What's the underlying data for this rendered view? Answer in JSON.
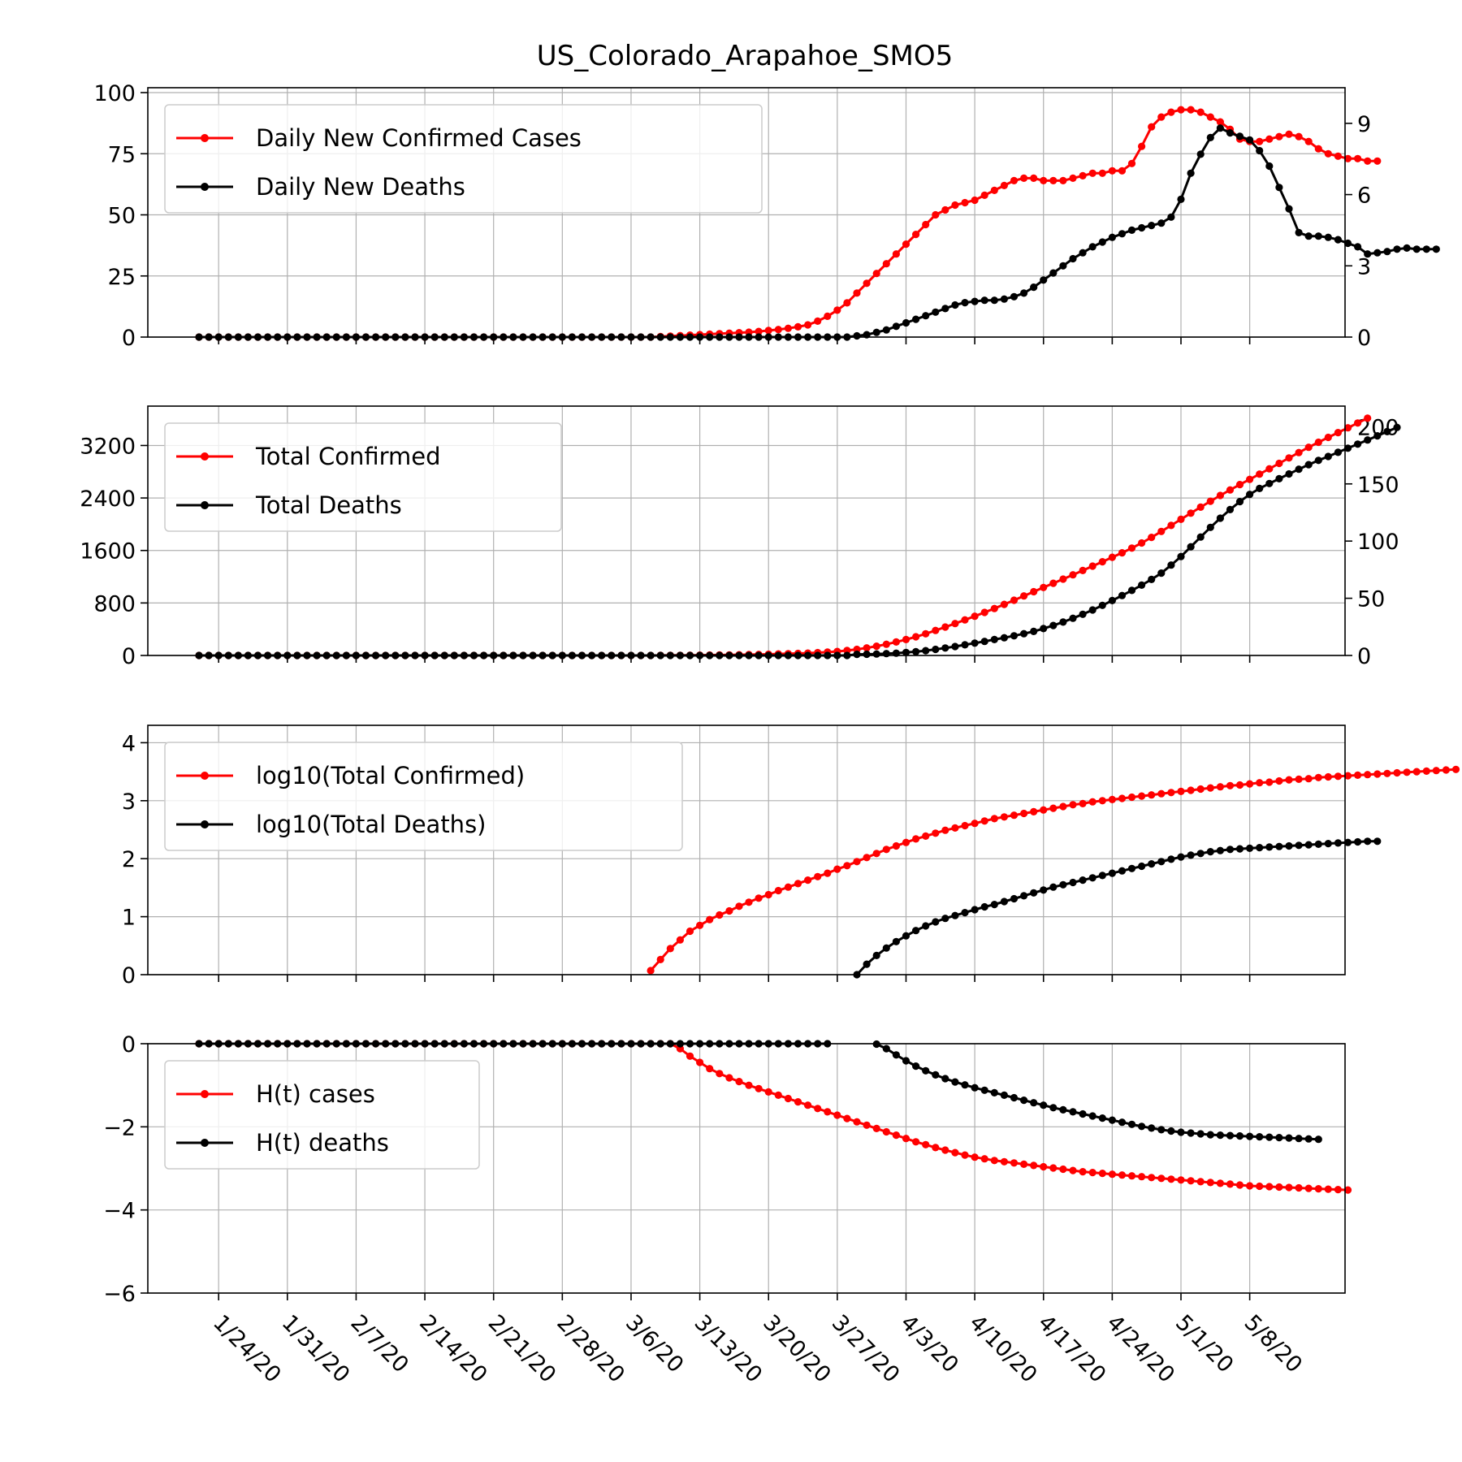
{
  "chart_data": {
    "type": "line",
    "title": "US_Colorado_Arapahoe_SMO5",
    "x_ticks": [
      "1/24/20",
      "1/31/20",
      "2/7/20",
      "2/14/20",
      "2/21/20",
      "2/28/20",
      "3/6/20",
      "3/13/20",
      "3/20/20",
      "3/27/20",
      "4/3/20",
      "4/10/20",
      "4/17/20",
      "4/24/20",
      "5/1/20",
      "5/8/20"
    ],
    "x_start": "1/22/20",
    "colors": {
      "cases": "#ff0000",
      "deaths": "#000000"
    },
    "grid": true,
    "legend_position": "upper-left",
    "panels": [
      {
        "id": "daily",
        "yticks_left": [
          "0",
          "25",
          "50",
          "75",
          "100"
        ],
        "ylim_left": [
          0,
          102
        ],
        "yticks_right": [
          "0",
          "3",
          "6",
          "9"
        ],
        "ylim_right": [
          0,
          10.5
        ],
        "series": [
          {
            "name": "Daily New Confirmed Cases",
            "axis": "left",
            "color": "#ff0000",
            "y": [
              0,
              0,
              0,
              0,
              0,
              0,
              0,
              0,
              0,
              0,
              0,
              0,
              0,
              0,
              0,
              0,
              0,
              0,
              0,
              0,
              0,
              0,
              0,
              0,
              0,
              0,
              0,
              0,
              0,
              0,
              0,
              0,
              0,
              0,
              0,
              0,
              0,
              0,
              0,
              0,
              0,
              0,
              0,
              0,
              0,
              0,
              0,
              0.2,
              0.4,
              0.6,
              0.8,
              1.0,
              1.2,
              1.4,
              1.6,
              1.8,
              2.0,
              2.3,
              2.7,
              3.1,
              3.6,
              4.2,
              5.0,
              6.5,
              8.5,
              11,
              14,
              18,
              22,
              26,
              30,
              34,
              38,
              42,
              46,
              50,
              52,
              54,
              55,
              56,
              58,
              60,
              62,
              64,
              65,
              65,
              64,
              64,
              64,
              65,
              66,
              67,
              67,
              68,
              68,
              71,
              78,
              86,
              90,
              92,
              93,
              93,
              92,
              90,
              88,
              85,
              81,
              80,
              80,
              81,
              82,
              83,
              82,
              80,
              77,
              75,
              74,
              73,
              73,
              72,
              72
            ]
          },
          {
            "name": "Daily New Deaths",
            "axis": "right",
            "color": "#000000",
            "y": [
              0,
              0,
              0,
              0,
              0,
              0,
              0,
              0,
              0,
              0,
              0,
              0,
              0,
              0,
              0,
              0,
              0,
              0,
              0,
              0,
              0,
              0,
              0,
              0,
              0,
              0,
              0,
              0,
              0,
              0,
              0,
              0,
              0,
              0,
              0,
              0,
              0,
              0,
              0,
              0,
              0,
              0,
              0,
              0,
              0,
              0,
              0,
              0,
              0,
              0,
              0,
              0,
              0,
              0,
              0,
              0,
              0,
              0,
              0,
              0,
              0,
              0,
              0,
              0,
              0,
              0,
              0,
              0.05,
              0.1,
              0.2,
              0.3,
              0.45,
              0.6,
              0.75,
              0.9,
              1.05,
              1.2,
              1.35,
              1.45,
              1.5,
              1.55,
              1.55,
              1.6,
              1.7,
              1.85,
              2.1,
              2.4,
              2.7,
              3.0,
              3.3,
              3.55,
              3.8,
              4.0,
              4.2,
              4.35,
              4.5,
              4.6,
              4.7,
              4.8,
              5.05,
              5.8,
              6.9,
              7.7,
              8.4,
              8.8,
              8.6,
              8.45,
              8.3,
              7.85,
              7.2,
              6.3,
              5.4,
              4.4,
              4.25,
              4.25,
              4.2,
              4.1,
              3.95,
              3.8,
              3.5,
              3.55,
              3.6,
              3.7,
              3.75,
              3.7,
              3.7,
              3.7
            ]
          }
        ]
      },
      {
        "id": "total",
        "yticks_left": [
          "0",
          "800",
          "1600",
          "2400",
          "3200"
        ],
        "ylim_left": [
          0,
          3800
        ],
        "yticks_right": [
          "0",
          "50",
          "100",
          "150",
          "200"
        ],
        "ylim_right": [
          0,
          218
        ],
        "series": [
          {
            "name": "Total Confirmed",
            "axis": "left",
            "color": "#ff0000",
            "y": [
              0,
              0,
              0,
              0,
              0,
              0,
              0,
              0,
              0,
              0,
              0,
              0,
              0,
              0,
              0,
              0,
              0,
              0,
              0,
              0,
              0,
              0,
              0,
              0,
              0,
              0,
              0,
              0,
              0,
              0,
              0,
              0,
              0,
              0,
              0,
              0,
              0,
              0,
              0,
              0,
              0,
              0,
              0,
              0,
              0,
              0,
              0,
              1,
              2,
              3,
              4,
              5,
              6,
              7,
              9,
              11,
              13,
              16,
              19,
              23,
              27,
              31,
              36,
              43,
              51,
              61,
              75,
              93,
              115,
              141,
              171,
              205,
              243,
              285,
              331,
              381,
              433,
              487,
              542,
              598,
              656,
              716,
              778,
              842,
              907,
              972,
              1036,
              1100,
              1164,
              1229,
              1295,
              1362,
              1429,
              1497,
              1565,
              1636,
              1714,
              1800,
              1890,
              1982,
              2075,
              2168,
              2260,
              2350,
              2438,
              2523,
              2604,
              2684,
              2764,
              2845,
              2927,
              3010,
              3092,
              3172,
              3249,
              3324,
              3397,
              3470,
              3543,
              3615
            ]
          },
          {
            "name": "Total Deaths",
            "axis": "right",
            "color": "#000000",
            "y": [
              0,
              0,
              0,
              0,
              0,
              0,
              0,
              0,
              0,
              0,
              0,
              0,
              0,
              0,
              0,
              0,
              0,
              0,
              0,
              0,
              0,
              0,
              0,
              0,
              0,
              0,
              0,
              0,
              0,
              0,
              0,
              0,
              0,
              0,
              0,
              0,
              0,
              0,
              0,
              0,
              0,
              0,
              0,
              0,
              0,
              0,
              0,
              0,
              0,
              0,
              0,
              0,
              0,
              0,
              0,
              0,
              0,
              0,
              0,
              0,
              0,
              0,
              0,
              0,
              0,
              0,
              0,
              1,
              1.1,
              1.3,
              1.6,
              2,
              2.6,
              3.3,
              4.2,
              5.3,
              6.5,
              7.8,
              9.3,
              10.8,
              12.3,
              13.9,
              15.5,
              17.2,
              19,
              21,
              23.5,
              26.2,
              29.2,
              32.5,
              36,
              39.8,
              43.8,
              48,
              52.4,
              56.9,
              61.5,
              66.5,
              72,
              79,
              86.5,
              95,
              103.5,
              112,
              120,
              127.5,
              134.5,
              140.8,
              146,
              150.3,
              154.5,
              158.7,
              162.8,
              166.8,
              170.6,
              174,
              177.6,
              181.2,
              184.8,
              188.4,
              192,
              195.7,
              199.4
            ]
          }
        ]
      },
      {
        "id": "log",
        "yticks_left": [
          "0",
          "1",
          "2",
          "3",
          "4"
        ],
        "ylim_left": [
          0,
          4.3
        ],
        "series": [
          {
            "name": "log10(Total Confirmed)",
            "axis": "left",
            "color": "#ff0000",
            "start_index": 46,
            "y": [
              0.07,
              0.26,
              0.45,
              0.6,
              0.75,
              0.85,
              0.95,
              1.03,
              1.1,
              1.18,
              1.25,
              1.32,
              1.38,
              1.45,
              1.51,
              1.57,
              1.63,
              1.69,
              1.75,
              1.82,
              1.88,
              1.95,
              2.02,
              2.09,
              2.16,
              2.22,
              2.28,
              2.34,
              2.39,
              2.44,
              2.49,
              2.53,
              2.57,
              2.61,
              2.65,
              2.69,
              2.72,
              2.75,
              2.78,
              2.81,
              2.84,
              2.87,
              2.9,
              2.93,
              2.95,
              2.98,
              3.0,
              3.02,
              3.04,
              3.06,
              3.08,
              3.1,
              3.12,
              3.14,
              3.16,
              3.18,
              3.2,
              3.22,
              3.24,
              3.26,
              3.27,
              3.29,
              3.31,
              3.32,
              3.34,
              3.36,
              3.37,
              3.38,
              3.4,
              3.41,
              3.42,
              3.43,
              3.44,
              3.45,
              3.46,
              3.47,
              3.48,
              3.49,
              3.5,
              3.51,
              3.52,
              3.53,
              3.54
            ]
          },
          {
            "name": "log10(Total Deaths)",
            "axis": "left",
            "color": "#000000",
            "start_index": 67,
            "y": [
              0.0,
              0.18,
              0.33,
              0.46,
              0.57,
              0.67,
              0.76,
              0.84,
              0.91,
              0.97,
              1.02,
              1.07,
              1.12,
              1.17,
              1.21,
              1.26,
              1.31,
              1.36,
              1.41,
              1.46,
              1.51,
              1.55,
              1.59,
              1.63,
              1.67,
              1.71,
              1.75,
              1.79,
              1.83,
              1.87,
              1.91,
              1.95,
              1.99,
              2.03,
              2.06,
              2.09,
              2.12,
              2.14,
              2.16,
              2.17,
              2.18,
              2.19,
              2.2,
              2.21,
              2.22,
              2.23,
              2.24,
              2.25,
              2.26,
              2.27,
              2.28,
              2.29,
              2.3,
              2.3
            ]
          }
        ]
      },
      {
        "id": "h",
        "yticks_left": [
          "0",
          "−2",
          "−4",
          "−6"
        ],
        "ylim_left": [
          -6,
          0
        ],
        "series": [
          {
            "name": "H(t) cases",
            "axis": "left",
            "color": "#ff0000",
            "y": [
              0,
              0,
              0,
              0,
              0,
              0,
              0,
              0,
              0,
              0,
              0,
              0,
              0,
              0,
              0,
              0,
              0,
              0,
              0,
              0,
              0,
              0,
              0,
              0,
              0,
              0,
              0,
              0,
              0,
              0,
              0,
              0,
              0,
              0,
              0,
              0,
              0,
              0,
              0,
              0,
              0,
              0,
              0,
              0,
              0,
              0,
              0,
              0,
              0,
              -0.12,
              -0.3,
              -0.45,
              -0.6,
              -0.72,
              -0.82,
              -0.91,
              -1.0,
              -1.08,
              -1.16,
              -1.24,
              -1.32,
              -1.4,
              -1.48,
              -1.56,
              -1.64,
              -1.72,
              -1.8,
              -1.88,
              -1.96,
              -2.04,
              -2.12,
              -2.2,
              -2.28,
              -2.36,
              -2.43,
              -2.5,
              -2.56,
              -2.62,
              -2.68,
              -2.73,
              -2.77,
              -2.81,
              -2.84,
              -2.87,
              -2.9,
              -2.93,
              -2.96,
              -2.99,
              -3.02,
              -3.05,
              -3.08,
              -3.1,
              -3.12,
              -3.14,
              -3.16,
              -3.18,
              -3.2,
              -3.22,
              -3.24,
              -3.26,
              -3.28,
              -3.3,
              -3.32,
              -3.34,
              -3.36,
              -3.38,
              -3.4,
              -3.42,
              -3.43,
              -3.44,
              -3.45,
              -3.46,
              -3.47,
              -3.48,
              -3.49,
              -3.5,
              -3.51,
              -3.52
            ]
          },
          {
            "name": "H(t) deaths",
            "axis": "left",
            "color": "#000000",
            "y": [
              0,
              0,
              0,
              0,
              0,
              0,
              0,
              0,
              0,
              0,
              0,
              0,
              0,
              0,
              0,
              0,
              0,
              0,
              0,
              0,
              0,
              0,
              0,
              0,
              0,
              0,
              0,
              0,
              0,
              0,
              0,
              0,
              0,
              0,
              0,
              0,
              0,
              0,
              0,
              0,
              0,
              0,
              0,
              0,
              0,
              0,
              0,
              0,
              0,
              0,
              0,
              0,
              0,
              0,
              0,
              0,
              0,
              0,
              0,
              0,
              0,
              0,
              0,
              0,
              0,
              null,
              null,
              null,
              null,
              -0.01,
              -0.12,
              -0.27,
              -0.41,
              -0.54,
              -0.65,
              -0.75,
              -0.84,
              -0.92,
              -0.99,
              -1.06,
              -1.12,
              -1.18,
              -1.24,
              -1.3,
              -1.36,
              -1.42,
              -1.48,
              -1.54,
              -1.59,
              -1.64,
              -1.69,
              -1.74,
              -1.79,
              -1.84,
              -1.89,
              -1.94,
              -1.99,
              -2.03,
              -2.07,
              -2.1,
              -2.13,
              -2.15,
              -2.17,
              -2.19,
              -2.2,
              -2.21,
              -2.22,
              -2.23,
              -2.24,
              -2.25,
              -2.26,
              -2.27,
              -2.28,
              -2.29,
              -2.3
            ]
          }
        ]
      }
    ]
  }
}
